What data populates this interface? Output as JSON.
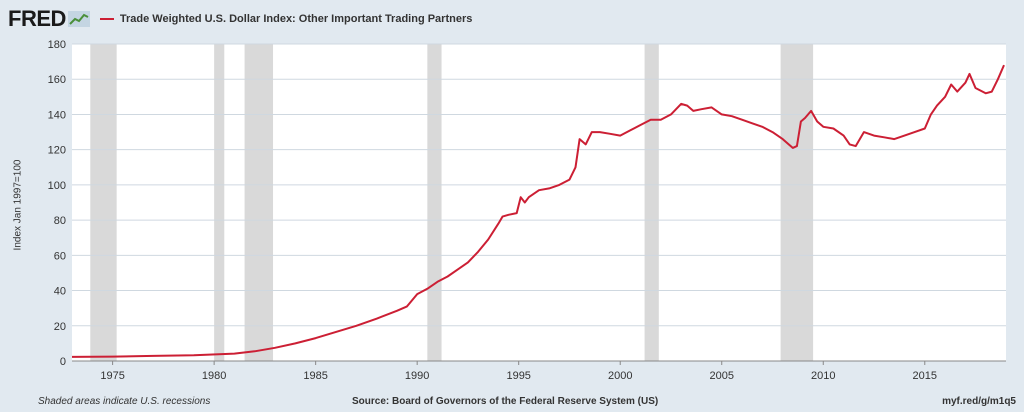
{
  "header": {
    "logo_text": "FRED",
    "logo_icon": "chart-line-icon"
  },
  "footer": {
    "recession_note": "Shaded areas indicate U.S. recessions",
    "source": "Source: Board of Governors of the Federal Reserve System (US)",
    "short_url": "myf.red/g/m1q5"
  },
  "colors": {
    "series": "#cc1f34",
    "recession": "#d9d9d9",
    "plot_bg": "#ffffff",
    "page_bg": "#e1e9f0",
    "grid": "#cfd8e0"
  },
  "chart_data": {
    "type": "line",
    "title": "",
    "xlabel": "",
    "ylabel": "Index Jan 1997=100",
    "xlim": [
      1973.0,
      2019.0
    ],
    "ylim": [
      0,
      180
    ],
    "xticks": [
      1975,
      1980,
      1985,
      1990,
      1995,
      2000,
      2005,
      2010,
      2015
    ],
    "yticks": [
      0,
      20,
      40,
      60,
      80,
      100,
      120,
      140,
      160,
      180
    ],
    "grid": "horizontal",
    "legend": "top-left",
    "recessions": [
      [
        1973.9,
        1975.2
      ],
      [
        1980.0,
        1980.5
      ],
      [
        1981.5,
        1982.9
      ],
      [
        1990.5,
        1991.2
      ],
      [
        2001.2,
        2001.9
      ],
      [
        2007.9,
        2009.5
      ]
    ],
    "series": [
      {
        "name": "Trade Weighted U.S. Dollar Index: Other Important Trading Partners",
        "x": [
          1973.0,
          1975.0,
          1977.0,
          1979.0,
          1981.0,
          1982.0,
          1983.0,
          1984.0,
          1985.0,
          1986.0,
          1987.0,
          1988.0,
          1989.0,
          1989.5,
          1990.0,
          1990.5,
          1991.0,
          1991.5,
          1992.0,
          1992.5,
          1993.0,
          1993.5,
          1994.0,
          1994.2,
          1994.5,
          1994.9,
          1995.1,
          1995.3,
          1995.5,
          1996.0,
          1996.5,
          1997.0,
          1997.5,
          1997.8,
          1998.0,
          1998.3,
          1998.6,
          1999.0,
          1999.5,
          2000.0,
          2000.5,
          2001.0,
          2001.5,
          2002.0,
          2002.5,
          2003.0,
          2003.3,
          2003.6,
          2004.0,
          2004.5,
          2005.0,
          2005.5,
          2006.0,
          2006.5,
          2007.0,
          2007.5,
          2008.0,
          2008.3,
          2008.5,
          2008.7,
          2008.9,
          2009.1,
          2009.4,
          2009.7,
          2010.0,
          2010.5,
          2011.0,
          2011.3,
          2011.6,
          2012.0,
          2012.5,
          2013.0,
          2013.5,
          2014.0,
          2014.5,
          2015.0,
          2015.3,
          2015.6,
          2016.0,
          2016.3,
          2016.6,
          2017.0,
          2017.2,
          2017.5,
          2018.0,
          2018.3,
          2018.6,
          2018.9
        ],
        "values": [
          2.3,
          2.5,
          2.9,
          3.3,
          4.2,
          5.5,
          7.5,
          10.0,
          13.0,
          16.5,
          20.0,
          24.0,
          28.5,
          31.0,
          38.0,
          41.0,
          45.0,
          48.0,
          52.0,
          56.0,
          62.0,
          69.0,
          78.0,
          82.0,
          83.0,
          84.0,
          93.0,
          90.0,
          93.0,
          97.0,
          98.0,
          100.0,
          103.0,
          110.0,
          126.0,
          123.0,
          130.0,
          130.0,
          129.0,
          128.0,
          131.0,
          134.0,
          137.0,
          137.0,
          140.0,
          146.0,
          145.0,
          142.0,
          143.0,
          144.0,
          140.0,
          139.0,
          137.0,
          135.0,
          133.0,
          130.0,
          126.0,
          123.0,
          121.0,
          122.0,
          136.0,
          138.0,
          142.0,
          136.0,
          133.0,
          132.0,
          128.0,
          123.0,
          122.0,
          130.0,
          128.0,
          127.0,
          126.0,
          128.0,
          130.0,
          132.0,
          140.0,
          145.0,
          150.0,
          157.0,
          153.0,
          158.0,
          163.0,
          155.0,
          152.0,
          153.0,
          160.0,
          168.0
        ]
      }
    ]
  }
}
